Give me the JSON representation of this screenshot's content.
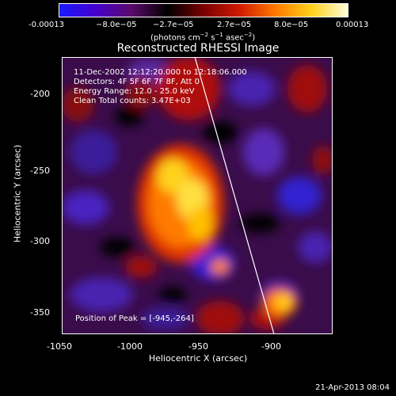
{
  "colorbar": {
    "ticks": [
      "-0.00013",
      "−8.0e−05",
      "−2.7e−05",
      "2.7e−05",
      "8.0e−05",
      "0.00013"
    ],
    "units_parts": [
      "(photons cm",
      "−2",
      " s",
      "−1",
      " asec",
      "−2",
      ")"
    ],
    "gradient_colors": [
      "#1a1aff",
      "#4400cc",
      "#5a0a6a",
      "#000000",
      "#7a0000",
      "#d01a00",
      "#ff7a00",
      "#ffd21a",
      "#ffffdc"
    ]
  },
  "plot": {
    "title": "Reconstructed RHESSI Image",
    "info_lines": [
      "11-Dec-2002 12:12:20.000 to 12:18:06.000",
      "Detectors: 4F 5F 6F 7F 8F, Att 0",
      "Energy Range: 12.0 - 25.0 keV",
      "Clean    Total counts: 3.47E+03"
    ],
    "peak_text": "Position of Peak = [-945,-264]",
    "xlabel": "Heliocentric X (arcsec)",
    "ylabel": "Heliocentric Y (arcsec)",
    "xticks": [
      "-1050",
      "-1000",
      "-950",
      "-900"
    ],
    "yticks": [
      "-200",
      "-250",
      "-300",
      "-350"
    ]
  },
  "footer": {
    "timestamp": "21-Apr-2013 08:04"
  }
}
